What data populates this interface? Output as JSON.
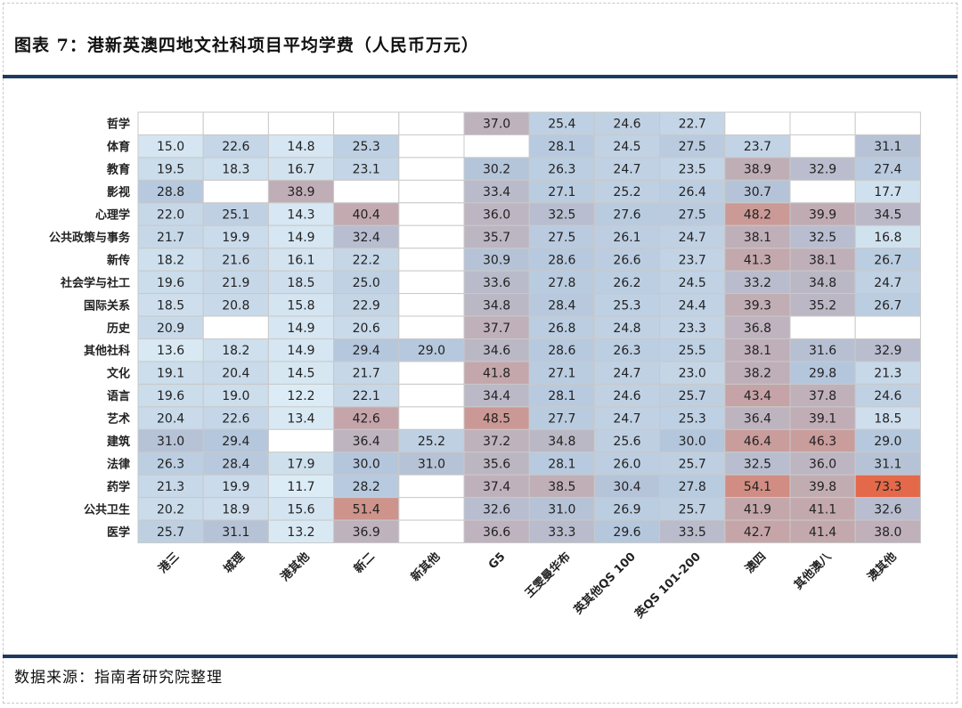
{
  "title": "图表 7：港新英澳四地文社科项目平均学费（人民币万元）",
  "source": "数据来源：指南者研究院整理",
  "chart_data": {
    "type": "heatmap",
    "rows": [
      "哲学",
      "体育",
      "教育",
      "影视",
      "心理学",
      "公共政策与事务",
      "新传",
      "社会学与社工",
      "国际关系",
      "历史",
      "其他社科",
      "文化",
      "语言",
      "艺术",
      "建筑",
      "法律",
      "药学",
      "公共卫生",
      "医学"
    ],
    "columns": [
      "港三",
      "城理",
      "港其他",
      "新二",
      "新其他",
      "G5",
      "王雯曼华布",
      "英其他QS 100",
      "英QS 101-200",
      "澳四",
      "其他澳八",
      "澳其他"
    ],
    "values": [
      [
        null,
        null,
        null,
        null,
        null,
        37.0,
        25.4,
        24.6,
        22.7,
        null,
        null,
        null
      ],
      [
        15.0,
        22.6,
        14.8,
        25.3,
        null,
        null,
        28.1,
        24.5,
        27.5,
        23.7,
        null,
        31.1
      ],
      [
        19.5,
        18.3,
        16.7,
        23.1,
        null,
        30.2,
        26.3,
        24.7,
        23.5,
        38.9,
        32.9,
        27.4
      ],
      [
        28.8,
        null,
        38.9,
        null,
        null,
        33.4,
        27.1,
        25.2,
        26.4,
        30.7,
        null,
        17.7
      ],
      [
        22.0,
        25.1,
        14.3,
        40.4,
        null,
        36.0,
        32.5,
        27.6,
        27.5,
        48.2,
        39.9,
        34.5
      ],
      [
        21.7,
        19.9,
        14.9,
        32.4,
        null,
        35.7,
        27.5,
        26.1,
        24.7,
        38.1,
        32.5,
        16.8
      ],
      [
        18.2,
        21.6,
        16.1,
        22.2,
        null,
        30.9,
        28.6,
        26.6,
        23.7,
        41.3,
        38.1,
        26.7
      ],
      [
        19.6,
        21.9,
        18.5,
        25.0,
        null,
        33.6,
        27.8,
        26.2,
        24.5,
        33.2,
        34.8,
        24.7
      ],
      [
        18.5,
        20.8,
        15.8,
        22.9,
        null,
        34.8,
        28.4,
        25.3,
        24.4,
        39.3,
        35.2,
        26.7
      ],
      [
        20.9,
        null,
        14.9,
        20.6,
        null,
        37.7,
        26.8,
        24.8,
        23.3,
        36.8,
        null,
        null
      ],
      [
        13.6,
        18.2,
        14.9,
        29.4,
        29.0,
        34.6,
        28.6,
        26.3,
        25.5,
        38.1,
        31.6,
        32.9
      ],
      [
        19.1,
        20.4,
        14.5,
        21.7,
        null,
        41.8,
        27.1,
        24.7,
        23.0,
        38.2,
        29.8,
        21.3
      ],
      [
        19.6,
        19.0,
        12.2,
        22.1,
        null,
        34.4,
        28.1,
        24.6,
        25.7,
        43.4,
        37.8,
        24.6
      ],
      [
        20.4,
        22.6,
        13.4,
        42.6,
        null,
        48.5,
        27.7,
        24.7,
        25.3,
        36.4,
        39.1,
        18.5
      ],
      [
        31.0,
        29.4,
        null,
        36.4,
        25.2,
        37.2,
        34.8,
        25.6,
        30.0,
        46.4,
        46.3,
        29.0
      ],
      [
        26.3,
        28.4,
        17.9,
        30.0,
        31.0,
        35.6,
        28.1,
        26.0,
        25.7,
        32.5,
        36.0,
        31.1
      ],
      [
        21.3,
        19.9,
        11.7,
        28.2,
        null,
        37.4,
        38.5,
        30.4,
        27.8,
        54.1,
        39.8,
        73.3
      ],
      [
        20.2,
        18.9,
        15.6,
        51.4,
        null,
        32.6,
        31.0,
        26.9,
        25.7,
        41.9,
        41.1,
        32.6
      ],
      [
        25.7,
        31.1,
        13.2,
        36.9,
        null,
        36.6,
        33.3,
        29.6,
        33.5,
        42.7,
        41.4,
        38.0
      ]
    ],
    "color_scale": {
      "low": "#dcecf6",
      "mid": "#b4c6dc",
      "high": "#e3694a"
    },
    "grid": true,
    "legend": "none"
  }
}
